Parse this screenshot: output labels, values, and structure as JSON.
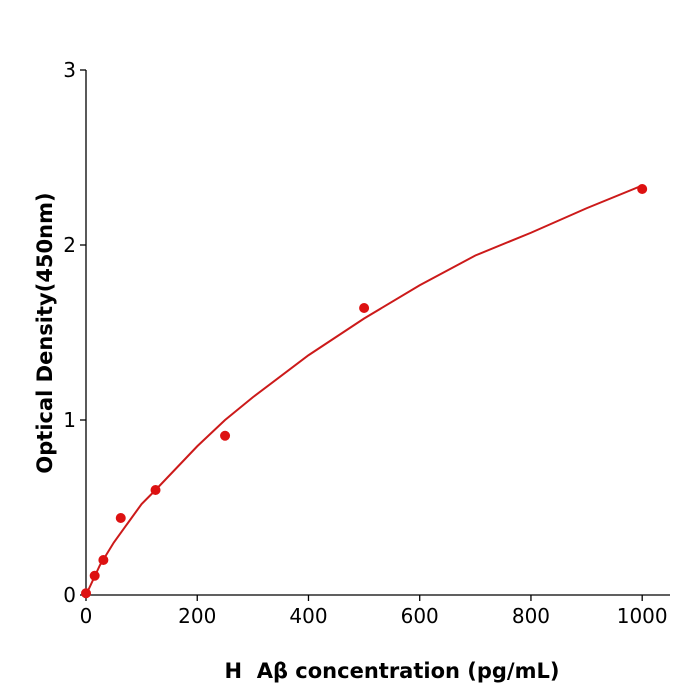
{
  "chart_data": {
    "type": "scatter",
    "xlabel": "H  Aβ concentration (pg/mL)",
    "ylabel": "Optical Density(450nm)",
    "xlim": [
      0,
      1050
    ],
    "ylim": [
      0,
      3
    ],
    "xticks": [
      0,
      200,
      400,
      600,
      800,
      1000
    ],
    "yticks": [
      0,
      1,
      2,
      3
    ],
    "grid": false,
    "series": [
      {
        "type": "line",
        "color": "#cc1a1a",
        "x": [
          0,
          25,
          50,
          100,
          125,
          200,
          250,
          300,
          400,
          500,
          600,
          700,
          800,
          900,
          1000
        ],
        "values": [
          0,
          0.17,
          0.3,
          0.52,
          0.6,
          0.85,
          1.0,
          1.13,
          1.37,
          1.58,
          1.77,
          1.94,
          2.07,
          2.21,
          2.34
        ]
      },
      {
        "type": "scatter",
        "color": "#dd1111",
        "x": [
          0,
          15.6,
          31.25,
          62.5,
          125,
          250,
          500,
          1000
        ],
        "values": [
          0.01,
          0.11,
          0.2,
          0.44,
          0.6,
          0.91,
          1.64,
          2.32
        ]
      }
    ]
  }
}
